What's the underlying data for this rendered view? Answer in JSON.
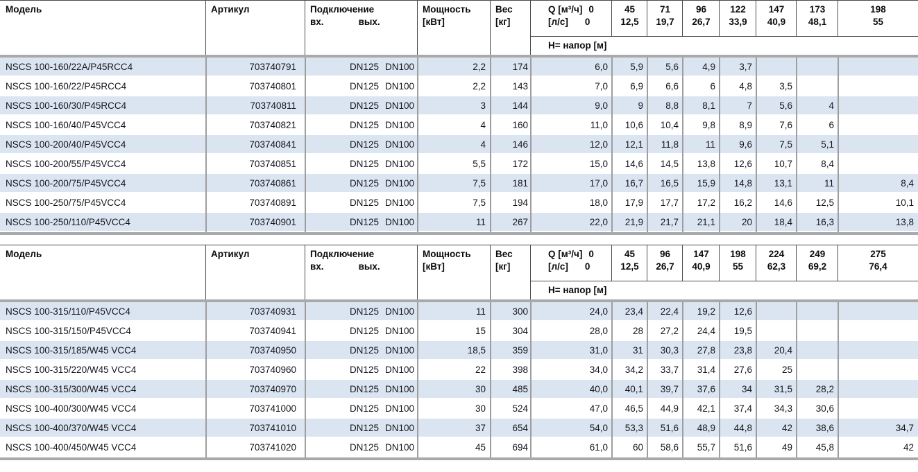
{
  "colors": {
    "stripe_blue": "#dbe5f1",
    "grid_gray": "#9e9e9e",
    "header_line": "#4a4a4a",
    "thick_line": "#a9a9a9"
  },
  "headers": {
    "model": "Модель",
    "article": "Артикул",
    "connection": "Подключение",
    "conn_in": "вх.",
    "conn_out": "вых.",
    "power_l1": "Мощность",
    "power_l2": "[кВт]",
    "weight_l1": "Вес",
    "weight_l2": "[кг]",
    "q_label": "Q [м³/ч]",
    "q_unit2": "[л/с]",
    "head_label": "Н= напор [м]"
  },
  "tables": [
    {
      "q_m3h": [
        "0",
        "45",
        "71",
        "96",
        "122",
        "147",
        "173",
        "198"
      ],
      "q_ls": [
        "0",
        "12,5",
        "19,7",
        "26,7",
        "33,9",
        "40,9",
        "48,1",
        "55"
      ],
      "rows": [
        {
          "model": "NSCS 100-160/22A/P45RCC4",
          "article": "703740791",
          "dn_in": "DN125",
          "dn_out": "DN100",
          "power": "2,2",
          "weight": "174",
          "heads": [
            "6,0",
            "5,9",
            "5,6",
            "4,9",
            "3,7",
            "",
            "",
            ""
          ]
        },
        {
          "model": "NSCS 100-160/22/P45RCC4",
          "article": "703740801",
          "dn_in": "DN125",
          "dn_out": "DN100",
          "power": "2,2",
          "weight": "143",
          "heads": [
            "7,0",
            "6,9",
            "6,6",
            "6",
            "4,8",
            "3,5",
            "",
            ""
          ]
        },
        {
          "model": "NSCS 100-160/30/P45RCC4",
          "article": "703740811",
          "dn_in": "DN125",
          "dn_out": "DN100",
          "power": "3",
          "weight": "144",
          "heads": [
            "9,0",
            "9",
            "8,8",
            "8,1",
            "7",
            "5,6",
            "4",
            ""
          ]
        },
        {
          "model": "NSCS 100-160/40/P45VCC4",
          "article": "703740821",
          "dn_in": "DN125",
          "dn_out": "DN100",
          "power": "4",
          "weight": "160",
          "heads": [
            "11,0",
            "10,6",
            "10,4",
            "9,8",
            "8,9",
            "7,6",
            "6",
            ""
          ]
        },
        {
          "model": "NSCS 100-200/40/P45VCC4",
          "article": "703740841",
          "dn_in": "DN125",
          "dn_out": "DN100",
          "power": "4",
          "weight": "146",
          "heads": [
            "12,0",
            "12,1",
            "11,8",
            "11",
            "9,6",
            "7,5",
            "5,1",
            ""
          ]
        },
        {
          "model": "NSCS 100-200/55/P45VCC4",
          "article": "703740851",
          "dn_in": "DN125",
          "dn_out": "DN100",
          "power": "5,5",
          "weight": "172",
          "heads": [
            "15,0",
            "14,6",
            "14,5",
            "13,8",
            "12,6",
            "10,7",
            "8,4",
            ""
          ]
        },
        {
          "model": "NSCS 100-200/75/P45VCC4",
          "article": "703740861",
          "dn_in": "DN125",
          "dn_out": "DN100",
          "power": "7,5",
          "weight": "181",
          "heads": [
            "17,0",
            "16,7",
            "16,5",
            "15,9",
            "14,8",
            "13,1",
            "11",
            "8,4"
          ]
        },
        {
          "model": "NSCS 100-250/75/P45VCC4",
          "article": "703740891",
          "dn_in": "DN125",
          "dn_out": "DN100",
          "power": "7,5",
          "weight": "194",
          "heads": [
            "18,0",
            "17,9",
            "17,7",
            "17,2",
            "16,2",
            "14,6",
            "12,5",
            "10,1"
          ]
        },
        {
          "model": "NSCS 100-250/110/P45VCC4",
          "article": "703740901",
          "dn_in": "DN125",
          "dn_out": "DN100",
          "power": "11",
          "weight": "267",
          "heads": [
            "22,0",
            "21,9",
            "21,7",
            "21,1",
            "20",
            "18,4",
            "16,3",
            "13,8"
          ]
        }
      ]
    },
    {
      "q_m3h": [
        "0",
        "45",
        "96",
        "147",
        "198",
        "224",
        "249",
        "275"
      ],
      "q_ls": [
        "0",
        "12,5",
        "26,7",
        "40,9",
        "55",
        "62,3",
        "69,2",
        "76,4"
      ],
      "rows": [
        {
          "model": "NSCS 100-315/110/P45VCC4",
          "article": "703740931",
          "dn_in": "DN125",
          "dn_out": "DN100",
          "power": "11",
          "weight": "300",
          "heads": [
            "24,0",
            "23,4",
            "22,4",
            "19,2",
            "12,6",
            "",
            "",
            ""
          ]
        },
        {
          "model": "NSCS 100-315/150/P45VCC4",
          "article": "703740941",
          "dn_in": "DN125",
          "dn_out": "DN100",
          "power": "15",
          "weight": "304",
          "heads": [
            "28,0",
            "28",
            "27,2",
            "24,4",
            "19,5",
            "",
            "",
            ""
          ]
        },
        {
          "model": "NSCS 100-315/185/W45 VCC4",
          "article": "703740950",
          "dn_in": "DN125",
          "dn_out": "DN100",
          "power": "18,5",
          "weight": "359",
          "heads": [
            "31,0",
            "31",
            "30,3",
            "27,8",
            "23,8",
            "20,4",
            "",
            ""
          ]
        },
        {
          "model": "NSCS 100-315/220/W45 VCC4",
          "article": "703740960",
          "dn_in": "DN125",
          "dn_out": "DN100",
          "power": "22",
          "weight": "398",
          "heads": [
            "34,0",
            "34,2",
            "33,7",
            "31,4",
            "27,6",
            "25",
            "",
            ""
          ]
        },
        {
          "model": "NSCS 100-315/300/W45 VCC4",
          "article": "703740970",
          "dn_in": "DN125",
          "dn_out": "DN100",
          "power": "30",
          "weight": "485",
          "heads": [
            "40,0",
            "40,1",
            "39,7",
            "37,6",
            "34",
            "31,5",
            "28,2",
            ""
          ]
        },
        {
          "model": "NSCS 100-400/300/W45 VCC4",
          "article": "703741000",
          "dn_in": "DN125",
          "dn_out": "DN100",
          "power": "30",
          "weight": "524",
          "heads": [
            "47,0",
            "46,5",
            "44,9",
            "42,1",
            "37,4",
            "34,3",
            "30,6",
            ""
          ]
        },
        {
          "model": "NSCS 100-400/370/W45 VCC4",
          "article": "703741010",
          "dn_in": "DN125",
          "dn_out": "DN100",
          "power": "37",
          "weight": "654",
          "heads": [
            "54,0",
            "53,3",
            "51,6",
            "48,9",
            "44,8",
            "42",
            "38,6",
            "34,7"
          ]
        },
        {
          "model": "NSCS 100-400/450/W45 VCC4",
          "article": "703741020",
          "dn_in": "DN125",
          "dn_out": "DN100",
          "power": "45",
          "weight": "694",
          "heads": [
            "61,0",
            "60",
            "58,6",
            "55,7",
            "51,6",
            "49",
            "45,8",
            "42"
          ]
        }
      ]
    }
  ]
}
